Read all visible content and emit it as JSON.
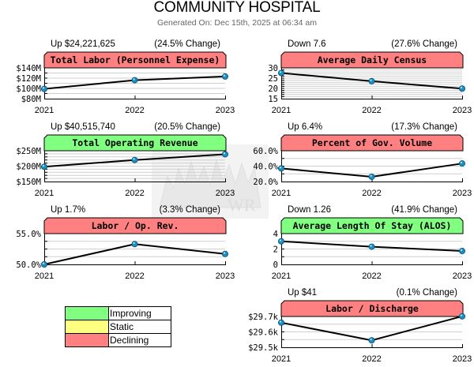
{
  "header": {
    "title": "COMMUNITY HOSPITAL",
    "generated": "Generated On: Dec 15th, 2025 at 06:34 am"
  },
  "colors": {
    "improving": "#80ff80",
    "static": "#ffff80",
    "declining": "#ff8080",
    "line": "#000000",
    "marker": "#1a8fc0"
  },
  "legend": [
    {
      "label": "Improving",
      "status": "improving"
    },
    {
      "label": "Static",
      "status": "static"
    },
    {
      "label": "Declining",
      "status": "declining"
    }
  ],
  "chart_data": [
    {
      "id": "total-labor",
      "type": "line",
      "title": "Total Labor (Personnel Expense)",
      "status": "declining",
      "delta_text": "Up $24,221,625",
      "change_text": "(24.5% Change)",
      "categories": [
        "2021",
        "2022",
        "2023"
      ],
      "values": [
        99000000,
        116000000,
        123221625
      ],
      "ylim": [
        80000000,
        140000000
      ],
      "yticks": [
        {
          "v": 80000000,
          "label": "$80M"
        },
        {
          "v": 100000000,
          "label": "$100M"
        },
        {
          "v": 120000000,
          "label": "$120M"
        },
        {
          "v": 140000000,
          "label": "$140M"
        }
      ],
      "minor_per_major": 2,
      "grid": true
    },
    {
      "id": "average-daily-census",
      "type": "line",
      "title": "Average Daily Census",
      "status": "declining",
      "delta_text": "Down 7.6",
      "change_text": "(27.6% Change)",
      "categories": [
        "2021",
        "2022",
        "2023"
      ],
      "values": [
        27.5,
        23.5,
        19.9
      ],
      "ylim": [
        15,
        30
      ],
      "yticks": [
        {
          "v": 15,
          "label": "15"
        },
        {
          "v": 20,
          "label": "20"
        },
        {
          "v": 25,
          "label": "25"
        },
        {
          "v": 30,
          "label": "30"
        }
      ],
      "minor_per_major": 5,
      "grid": true
    },
    {
      "id": "total-operating-revenue",
      "type": "line",
      "title": "Total Operating Revenue",
      "status": "improving",
      "delta_text": "Up $40,515,740",
      "change_text": "(20.5% Change)",
      "categories": [
        "2021",
        "2022",
        "2023"
      ],
      "values": [
        198000000,
        220000000,
        238515740
      ],
      "ylim": [
        150000000,
        250000000
      ],
      "yticks": [
        {
          "v": 150000000,
          "label": "$150M"
        },
        {
          "v": 200000000,
          "label": "$200M"
        },
        {
          "v": 250000000,
          "label": "$250M"
        }
      ],
      "minor_per_major": 5,
      "grid": true
    },
    {
      "id": "percent-gov-volume",
      "type": "line",
      "title": "Percent of Gov. Volume",
      "status": "declining",
      "delta_text": "Up 6.4%",
      "change_text": "(17.3% Change)",
      "categories": [
        "2021",
        "2022",
        "2023"
      ],
      "values": [
        37.0,
        26.2,
        43.4
      ],
      "ylim": [
        20,
        60
      ],
      "yticks": [
        {
          "v": 20,
          "label": "20.0%"
        },
        {
          "v": 40,
          "label": "40.0%"
        },
        {
          "v": 60,
          "label": "60.0%"
        }
      ],
      "minor_per_major": 2,
      "grid": true
    },
    {
      "id": "labor-op-rev",
      "type": "line",
      "title": "Labor / Op. Rev.",
      "status": "declining",
      "delta_text": "Up 1.7%",
      "change_text": "(3.3% Change)",
      "categories": [
        "2021",
        "2022",
        "2023"
      ],
      "values": [
        50.0,
        53.3,
        51.7
      ],
      "ylim": [
        50,
        55
      ],
      "yticks": [
        {
          "v": 50,
          "label": "50.0%"
        },
        {
          "v": 55,
          "label": "55.0%"
        }
      ],
      "minor_per_major": 4,
      "grid": true
    },
    {
      "id": "alos",
      "type": "line",
      "title": "Average Length Of Stay (ALOS)",
      "status": "improving",
      "delta_text": "Down 1.26",
      "change_text": "(41.9% Change)",
      "categories": [
        "2021",
        "2022",
        "2023"
      ],
      "values": [
        3.0,
        2.3,
        1.74
      ],
      "ylim": [
        0,
        4
      ],
      "yticks": [
        {
          "v": 0,
          "label": "0"
        },
        {
          "v": 2,
          "label": "2"
        },
        {
          "v": 4,
          "label": "4"
        }
      ],
      "minor_per_major": 2,
      "grid": true
    },
    {
      "id": "labor-discharge",
      "type": "line",
      "title": "Labor / Discharge",
      "status": "declining",
      "delta_text": "Up $41",
      "change_text": "(0.1% Change)",
      "categories": [
        "2021",
        "2022",
        "2023"
      ],
      "values": [
        29660,
        29545,
        29701
      ],
      "ylim": [
        29500,
        29700
      ],
      "yticks": [
        {
          "v": 29500,
          "label": "$29.5k"
        },
        {
          "v": 29600,
          "label": "$29.6k"
        },
        {
          "v": 29700,
          "label": "$29.7k"
        }
      ],
      "minor_per_major": 2,
      "grid": true
    }
  ]
}
